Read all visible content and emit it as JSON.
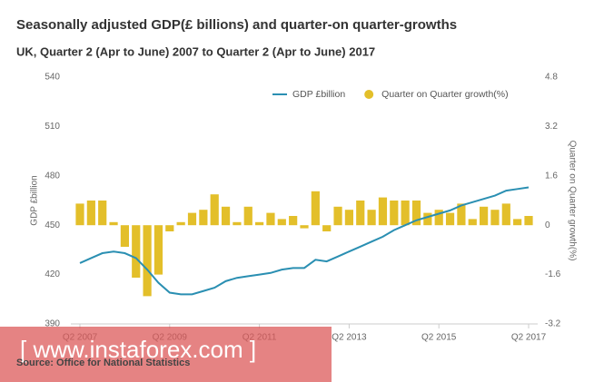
{
  "chart_data": {
    "type": "bar_line",
    "title": "Seasonally adjusted GDP(£ billions) and quarter-on quarter-growths",
    "subtitle": "UK, Quarter 2 (Apr to June) 2007 to Quarter 2 (Apr to June) 2017",
    "ylabel": "GDP £billion",
    "y2label": "Quarter on Quarter growth(%)",
    "source": "Source: Office for National Statistics",
    "watermark": "[ www.instaforex.com ]",
    "categories": [
      "Q2 2007",
      null,
      null,
      null,
      null,
      null,
      null,
      null,
      "Q2 2009",
      null,
      null,
      null,
      null,
      null,
      null,
      null,
      "Q2 2011",
      null,
      null,
      null,
      null,
      null,
      null,
      null,
      "Q2 2013",
      null,
      null,
      null,
      null,
      null,
      null,
      null,
      "Q2 2015",
      null,
      null,
      null,
      null,
      null,
      null,
      null,
      "Q2 2017"
    ],
    "series": [
      {
        "name": "GDP £billion",
        "type": "line",
        "color": "#2a8fb2",
        "values": [
          427,
          430,
          433,
          434,
          433,
          430,
          423,
          415,
          409,
          408,
          408,
          410,
          412,
          416,
          418,
          419,
          420,
          421,
          423,
          424,
          424,
          429,
          428,
          431,
          434,
          437,
          440,
          443,
          447,
          450,
          453,
          455,
          457,
          459,
          462,
          464,
          466,
          468,
          471,
          472,
          473
        ]
      },
      {
        "name": "Quarter on Quarter growth(%)",
        "type": "bar",
        "axis": "y2",
        "color": "#e3bf2a",
        "values": [
          0.7,
          0.8,
          0.8,
          0.1,
          -0.7,
          -1.7,
          -2.3,
          -1.6,
          -0.2,
          0.1,
          0.4,
          0.5,
          1.0,
          0.6,
          0.1,
          0.6,
          0.1,
          0.4,
          0.2,
          0.3,
          -0.1,
          1.1,
          -0.2,
          0.6,
          0.5,
          0.8,
          0.5,
          0.9,
          0.8,
          0.8,
          0.8,
          0.4,
          0.5,
          0.4,
          0.7,
          0.2,
          0.6,
          0.5,
          0.7,
          0.2,
          0.3
        ]
      }
    ],
    "ylim": [
      390,
      540
    ],
    "yticks": [
      390,
      420,
      450,
      480,
      510,
      540
    ],
    "y2lim": [
      -3.2,
      4.8
    ],
    "y2ticks": [
      -3.2,
      -1.6,
      0,
      1.6,
      3.2,
      4.8
    ],
    "grid": false,
    "legend": "top-right"
  }
}
